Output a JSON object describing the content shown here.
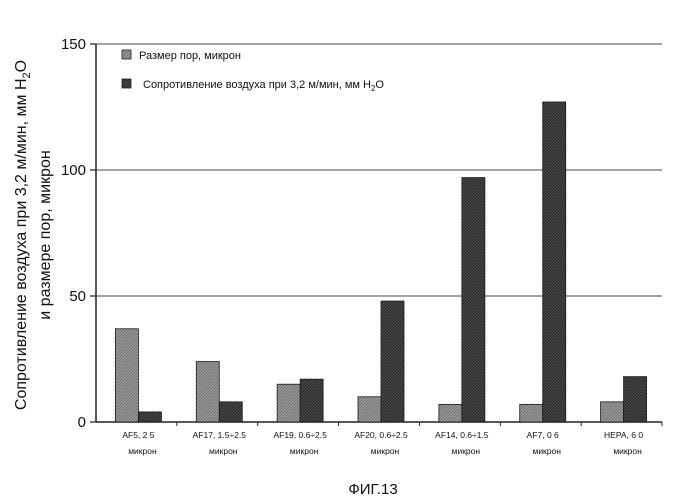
{
  "chart_data": {
    "type": "bar",
    "ylabel_line1": "Сопротивление воздуха при 3,2 м/мин, мм H",
    "ylabel_line1_sub": "2",
    "ylabel_line1_tail": "O",
    "ylabel_line2": "и размере пор, микрон",
    "ylim": [
      0,
      150
    ],
    "yticks": [
      "0",
      "50",
      "100",
      "150"
    ],
    "categories": [
      {
        "line1": "AF5,    2 5",
        "line2": "микрон"
      },
      {
        "line1": "AF17, 1.5÷2.5",
        "line2": "микрон"
      },
      {
        "line1": "AF19, 0.6÷2.5",
        "line2": "микрон"
      },
      {
        "line1": "AF20, 0.6÷2.5",
        "line2": "микрон"
      },
      {
        "line1": "AF14, 0.6÷1.5",
        "line2": "микрон"
      },
      {
        "line1": "AF7,      0 6",
        "line2": "микрон"
      },
      {
        "line1": "HEPA,    6 0",
        "line2": "микрон"
      }
    ],
    "series": [
      {
        "name": "Размер пор, микрон",
        "values": [
          37,
          24,
          15,
          10,
          7,
          7,
          8
        ],
        "color": "#8a8a8a"
      },
      {
        "name": "Сопротивление воздуха при 3,2 м/мин, мм H",
        "name_sub": "2",
        "name_tail": "O",
        "values": [
          4,
          8,
          17,
          48,
          97,
          127,
          18
        ],
        "color": "#2b2b2b"
      }
    ],
    "grid": true,
    "legend_placement": "top-left",
    "caption": "ФИГ.13"
  }
}
